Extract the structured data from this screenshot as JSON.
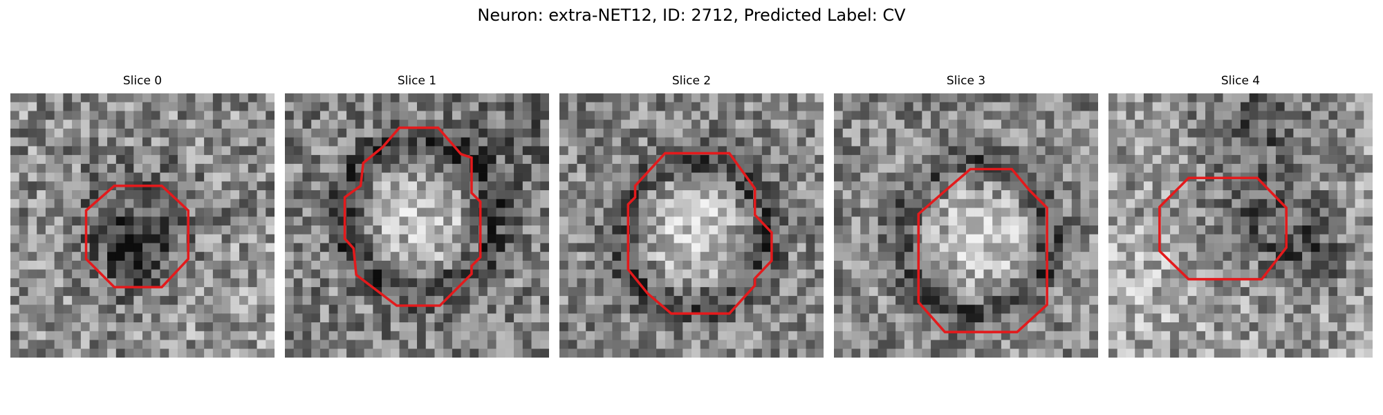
{
  "figure": {
    "title": "Neuron: extra-NET12, ID: 2712, Predicted Label: CV"
  },
  "colors": {
    "background": "#ffffff",
    "contour": "#e31a1c",
    "colormap": "grayscale"
  },
  "panels": [
    {
      "title": "Slice 0",
      "seed": 11,
      "center_tone": "dark",
      "contour_shape": "octagon"
    },
    {
      "title": "Slice 1",
      "seed": 23,
      "center_tone": "bright",
      "contour_shape": "irregular-octagon"
    },
    {
      "title": "Slice 2",
      "seed": 37,
      "center_tone": "bright",
      "contour_shape": "irregular-octagon"
    },
    {
      "title": "Slice 3",
      "seed": 49,
      "center_tone": "bright",
      "contour_shape": "octagon"
    },
    {
      "title": "Slice 4",
      "seed": 61,
      "center_tone": "mixed",
      "contour_shape": "octagon"
    }
  ]
}
